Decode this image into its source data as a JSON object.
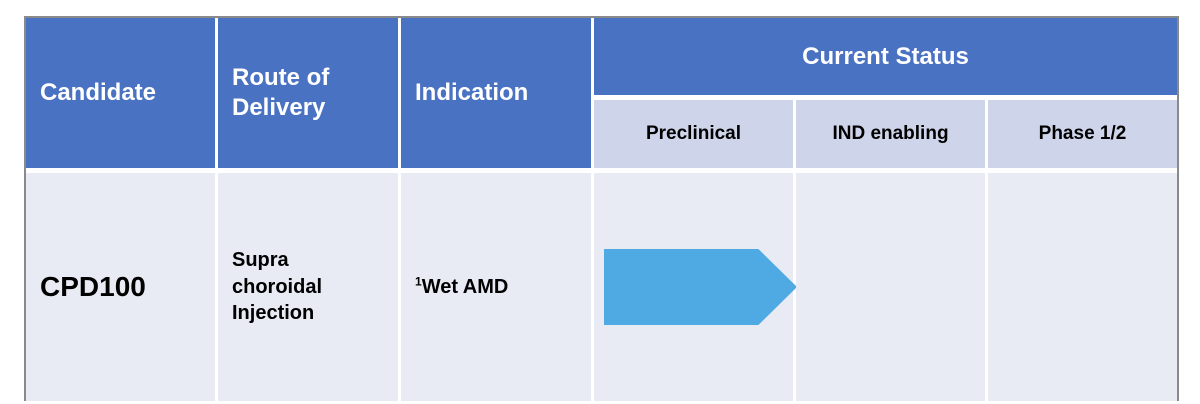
{
  "table": {
    "header": {
      "candidate": "Candidate",
      "route_of_delivery": "Route of\nDelivery",
      "indication": "Indication",
      "current_status": "Current Status",
      "stages": [
        "Preclinical",
        "IND enabling",
        "Phase 1/2"
      ]
    },
    "rows": [
      {
        "candidate": "CPD100",
        "route_of_delivery": "Supra\nchoroidal\nInjection",
        "indication_superscript": "1",
        "indication": "Wet AMD",
        "status_stage": "Preclinical",
        "arrow_shape": "right-pentagon-arrow"
      }
    ],
    "colors": {
      "header_bg": "#4A72C2",
      "header_text": "#FFFFFF",
      "subheader_bg": "#CED4E9",
      "body_bg": "#E9EBF4",
      "arrow": "#4FAAE4",
      "border": "#8A8A8A",
      "body_text": "#000000"
    }
  }
}
